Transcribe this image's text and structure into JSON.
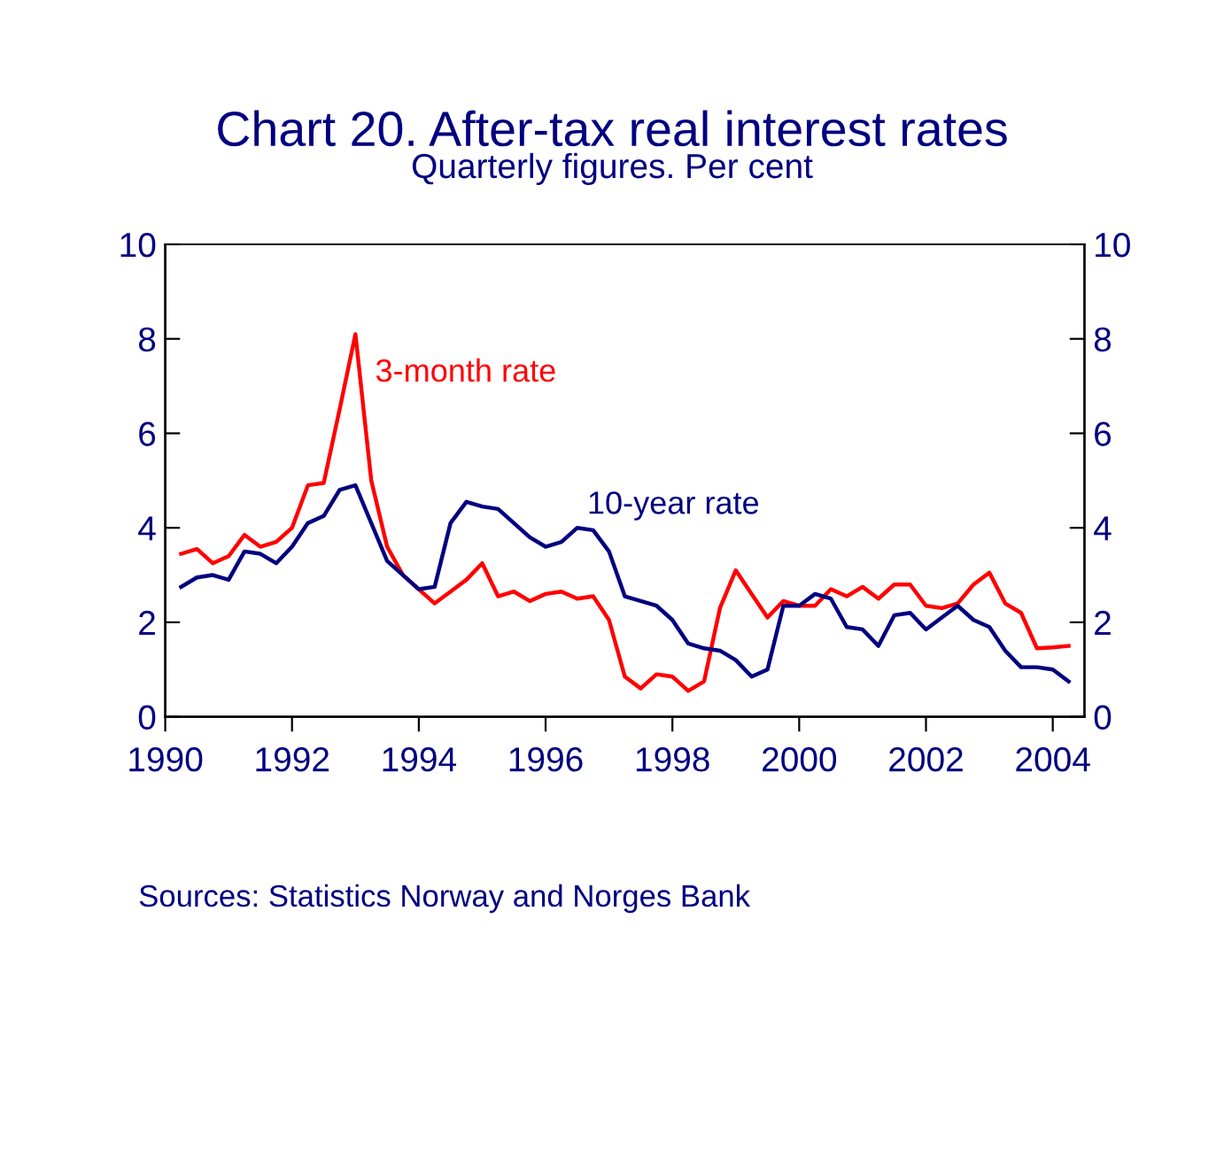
{
  "chart_data": {
    "type": "line",
    "title": "Chart 20. After-tax real interest rates",
    "subtitle": "Quarterly figures. Per cent",
    "x": [
      1990.25,
      1990.5,
      1990.75,
      1991.0,
      1991.25,
      1991.5,
      1991.75,
      1992.0,
      1992.25,
      1992.5,
      1992.75,
      1993.0,
      1993.25,
      1993.5,
      1993.75,
      1994.0,
      1994.25,
      1994.5,
      1994.75,
      1995.0,
      1995.25,
      1995.5,
      1995.75,
      1996.0,
      1996.25,
      1996.5,
      1996.75,
      1997.0,
      1997.25,
      1997.5,
      1997.75,
      1998.0,
      1998.25,
      1998.5,
      1998.75,
      1999.0,
      1999.25,
      1999.5,
      1999.75,
      2000.0,
      2000.25,
      2000.5,
      2000.75,
      2001.0,
      2001.25,
      2001.5,
      2001.75,
      2002.0,
      2002.25,
      2002.5,
      2002.75,
      2003.0,
      2003.25,
      2003.5,
      2003.75,
      2004.0,
      2004.25
    ],
    "series": [
      {
        "name": "3-month rate",
        "color": "#ff0000",
        "values": [
          3.45,
          3.55,
          3.25,
          3.4,
          3.85,
          3.6,
          3.7,
          4.0,
          4.9,
          4.95,
          6.5,
          8.1,
          5.0,
          3.6,
          3.0,
          2.7,
          2.4,
          2.65,
          2.9,
          3.25,
          2.55,
          2.65,
          2.45,
          2.6,
          2.65,
          2.5,
          2.55,
          2.05,
          0.85,
          0.6,
          0.9,
          0.85,
          0.55,
          0.75,
          2.3,
          3.1,
          2.6,
          2.1,
          2.45,
          2.35,
          2.35,
          2.7,
          2.55,
          2.75,
          2.5,
          2.8,
          2.8,
          2.35,
          2.3,
          2.4,
          2.8,
          3.05,
          2.4,
          2.2,
          1.45,
          1.47,
          1.5
        ]
      },
      {
        "name": "10-year rate",
        "color": "#000080",
        "values": [
          2.75,
          2.95,
          3.0,
          2.9,
          3.5,
          3.45,
          3.25,
          3.6,
          4.1,
          4.25,
          4.8,
          4.9,
          4.1,
          3.3,
          3.0,
          2.7,
          2.75,
          4.1,
          4.55,
          4.45,
          4.4,
          4.1,
          3.8,
          3.6,
          3.7,
          4.0,
          3.95,
          3.5,
          2.55,
          2.45,
          2.35,
          2.05,
          1.55,
          1.45,
          1.4,
          1.2,
          0.85,
          1.0,
          2.35,
          2.35,
          2.6,
          2.5,
          1.9,
          1.85,
          1.5,
          2.15,
          2.2,
          1.85,
          2.1,
          2.35,
          2.05,
          1.9,
          1.4,
          1.05,
          1.05,
          1.0,
          0.75
        ]
      }
    ],
    "xlim": [
      1990,
      2004.5
    ],
    "xticks": [
      1990,
      1992,
      1994,
      1996,
      1998,
      2000,
      2002,
      2004
    ],
    "ylim": [
      0,
      10
    ],
    "yticks": [
      0,
      2,
      4,
      6,
      8,
      10
    ],
    "y2lim": [
      0,
      10
    ],
    "y2ticks": [
      0,
      2,
      4,
      6,
      8,
      10
    ],
    "grid": false,
    "legend": false,
    "annotations": [
      "Sources: Statistics Norway and Norges Bank"
    ]
  }
}
